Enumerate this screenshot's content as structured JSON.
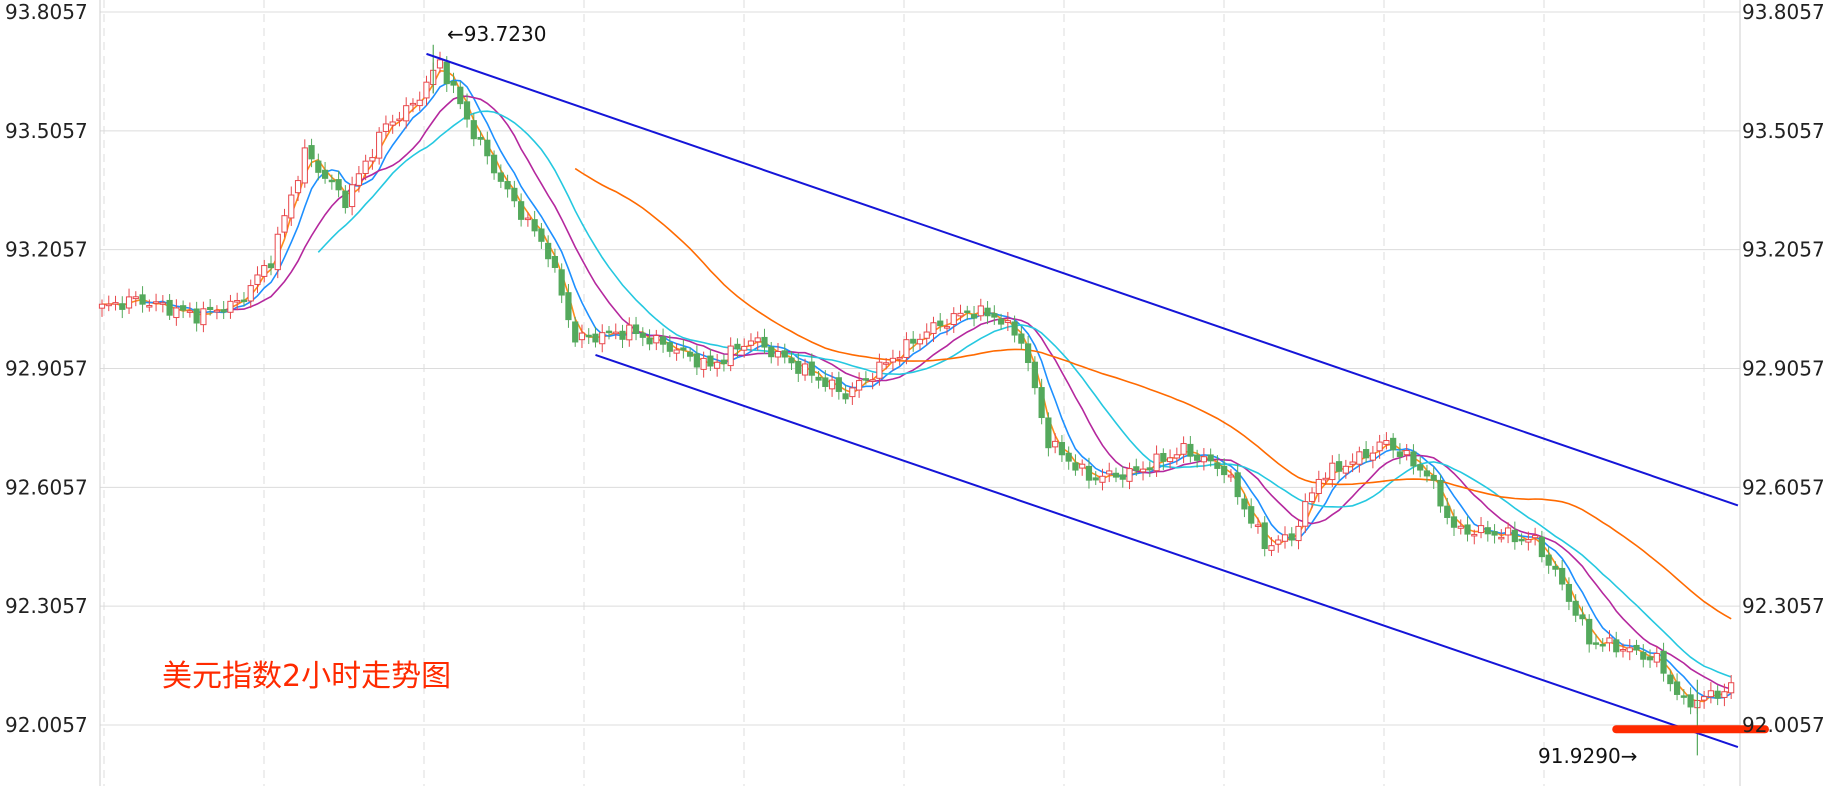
{
  "chart_data": {
    "type": "candlestick",
    "title": "美元指数2小时走势图",
    "y_ticks": [
      "93.8057",
      "93.5057",
      "93.2057",
      "92.9057",
      "92.6057",
      "92.3057",
      "92.0057"
    ],
    "ylim": [
      91.87,
      93.81
    ],
    "grid": true,
    "y_axis_labels_on_both_sides": true,
    "colors": {
      "up": "#e8474b",
      "down": "#54a95c",
      "ma_orange": "#ff8c1a",
      "ma_blue": "#1e90ff",
      "ma_purple": "#b5289e",
      "ma_cyan": "#25c8e0",
      "ma_long": "#ff6a00",
      "channel": "#1515d8",
      "support": "#ff2a00",
      "title": "#ff2a00",
      "grid": "#dcdcdc"
    },
    "annotations": {
      "high_label": "←93.7230",
      "high_value": 93.723,
      "low_label": "91.9290→",
      "low_value": 91.929
    },
    "channel": {
      "upper": {
        "from": {
          "bar": 48,
          "value": 93.7
        },
        "to": {
          "bar": 242,
          "value": 92.56
        }
      },
      "lower": {
        "from": {
          "bar": 73,
          "value": 92.94
        },
        "to": {
          "bar": 242,
          "value": 91.95
        }
      }
    },
    "support_level": {
      "value": 91.995,
      "from_bar": 224,
      "to_bar": 246
    }
  }
}
